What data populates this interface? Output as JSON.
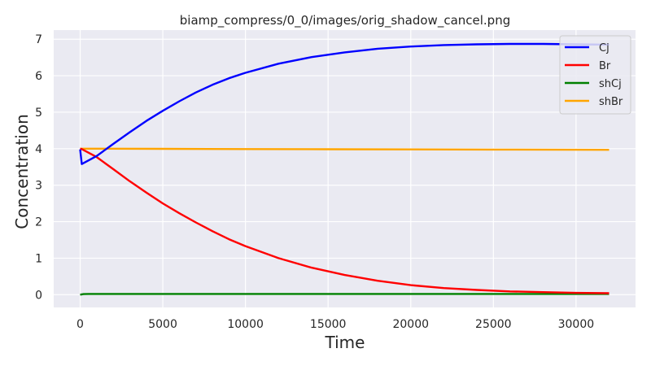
{
  "chart_data": {
    "type": "line",
    "title": "biamp_compress/0_0/images/orig_shadow_cancel.png",
    "xlabel": "Time",
    "ylabel": "Concentration",
    "xlim": [
      -1600,
      33600
    ],
    "ylim": [
      -0.35,
      7.25
    ],
    "xticks": [
      0,
      5000,
      10000,
      15000,
      20000,
      25000,
      30000
    ],
    "yticks": [
      0,
      1,
      2,
      3,
      4,
      5,
      6,
      7
    ],
    "grid": true,
    "legend_position": "top-right",
    "series": [
      {
        "name": "Cj",
        "color": "#0000ff",
        "x": [
          0,
          100,
          1000,
          2000,
          3000,
          4000,
          5000,
          6000,
          7000,
          8000,
          9000,
          10000,
          12000,
          14000,
          16000,
          18000,
          20000,
          22000,
          24000,
          26000,
          28000,
          30000,
          32000
        ],
        "y": [
          3.98,
          3.58,
          3.8,
          4.13,
          4.45,
          4.76,
          5.04,
          5.3,
          5.54,
          5.75,
          5.93,
          6.08,
          6.33,
          6.51,
          6.64,
          6.74,
          6.8,
          6.84,
          6.86,
          6.87,
          6.87,
          6.86,
          6.85
        ]
      },
      {
        "name": "Br",
        "color": "#ff0000",
        "x": [
          0,
          100,
          1000,
          2000,
          3000,
          4000,
          5000,
          6000,
          7000,
          8000,
          9000,
          10000,
          12000,
          14000,
          16000,
          18000,
          20000,
          22000,
          24000,
          26000,
          28000,
          30000,
          32000
        ],
        "y": [
          4.0,
          3.99,
          3.77,
          3.44,
          3.11,
          2.8,
          2.5,
          2.23,
          1.98,
          1.74,
          1.52,
          1.33,
          1.0,
          0.74,
          0.54,
          0.38,
          0.26,
          0.18,
          0.13,
          0.09,
          0.07,
          0.05,
          0.04
        ]
      },
      {
        "name": "shCj",
        "color": "#008000",
        "x": [
          0,
          200,
          500,
          1000,
          3000,
          10000,
          20000,
          32000
        ],
        "y": [
          0.0,
          0.015,
          0.02,
          0.02,
          0.02,
          0.02,
          0.02,
          0.02
        ]
      },
      {
        "name": "shBr",
        "color": "#ffa500",
        "x": [
          0,
          5000,
          10000,
          15000,
          20000,
          25000,
          32000
        ],
        "y": [
          4.0,
          3.995,
          3.99,
          3.985,
          3.98,
          3.975,
          3.97
        ]
      }
    ]
  }
}
